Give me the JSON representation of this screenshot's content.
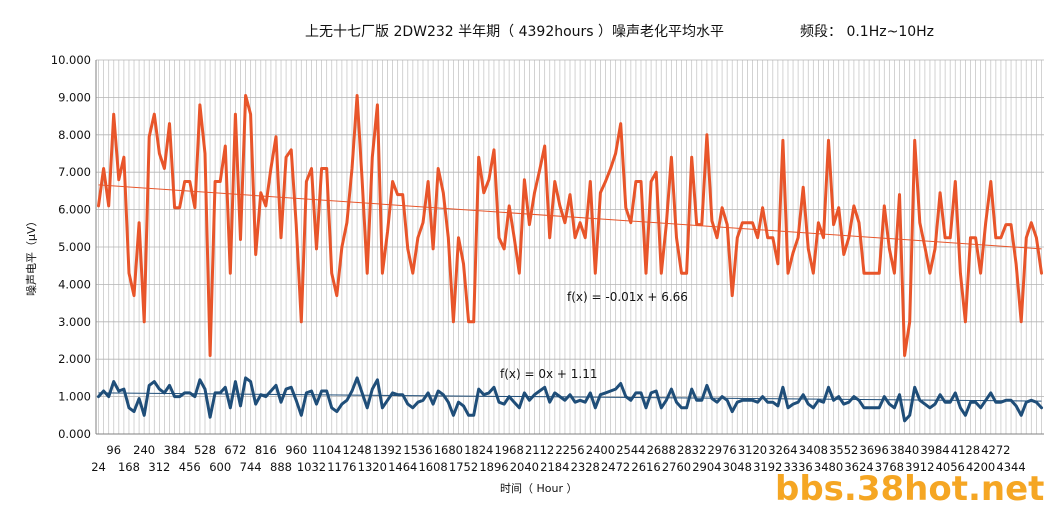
{
  "chart_data": {
    "type": "line",
    "title": "上无十七厂版 2DW232 半年期（ 4392hours ）噪声老化平均水平",
    "subtitle": "频段：  0.1Hz~10Hz",
    "xlabel": "时间（ Hour ）",
    "ylabel": "噪声电平（μV）",
    "ylim": [
      0,
      10
    ],
    "y_ticks": [
      "0.000",
      "1.000",
      "2.000",
      "3.000",
      "4.000",
      "5.000",
      "6.000",
      "7.000",
      "8.000",
      "9.000",
      "10.000"
    ],
    "x_start": 24,
    "x_step": 24,
    "x_tick_labels_lower": [
      "24",
      "168",
      "312",
      "456",
      "600",
      "744",
      "888",
      "1032",
      "1176",
      "1320",
      "1464",
      "1608",
      "1752",
      "1896",
      "2040",
      "2184",
      "2328",
      "2472",
      "2616",
      "2760",
      "2904",
      "3048",
      "3192",
      "3336",
      "3480",
      "3624",
      "3768",
      "3912",
      "4056",
      "4200",
      "4344"
    ],
    "x_tick_labels_upper": [
      "96",
      "240",
      "384",
      "528",
      "672",
      "816",
      "960",
      "1104",
      "1248",
      "1392",
      "1536",
      "1680",
      "1824",
      "1968",
      "2112",
      "2256",
      "2400",
      "2544",
      "2688",
      "2832",
      "2976",
      "3120",
      "3264",
      "3408",
      "3552",
      "3696",
      "3840",
      "3984",
      "4128",
      "4272"
    ],
    "grid": true,
    "legend": "none",
    "series": [
      {
        "name": "",
        "color": "#e8552a",
        "values": [
          6.1,
          7.1,
          6.1,
          8.55,
          6.8,
          7.4,
          4.3,
          3.7,
          5.65,
          3.0,
          7.95,
          8.55,
          7.5,
          7.1,
          8.3,
          6.05,
          6.05,
          6.75,
          6.75,
          6.05,
          8.8,
          7.5,
          2.1,
          6.75,
          6.75,
          7.7,
          4.3,
          8.55,
          5.2,
          9.05,
          8.55,
          4.8,
          6.45,
          6.1,
          7.1,
          7.95,
          5.25,
          7.4,
          7.6,
          5.6,
          3.0,
          6.75,
          7.1,
          4.95,
          7.1,
          7.1,
          4.3,
          3.7,
          5.0,
          5.65,
          7.1,
          9.05,
          6.8,
          4.3,
          7.4,
          8.8,
          4.3,
          5.4,
          6.75,
          6.4,
          6.4,
          4.95,
          4.3,
          5.25,
          5.65,
          6.75,
          4.95,
          7.1,
          6.45,
          5.25,
          3.0,
          5.25,
          4.55,
          3.0,
          3.0,
          7.4,
          6.45,
          6.8,
          7.6,
          5.25,
          4.95,
          6.1,
          5.25,
          4.3,
          6.8,
          5.6,
          6.45,
          7.05,
          7.7,
          5.25,
          6.75,
          6.1,
          5.65,
          6.4,
          5.25,
          5.65,
          5.25,
          6.75,
          4.3,
          6.45,
          6.75,
          7.1,
          7.5,
          8.3,
          6.05,
          5.65,
          6.75,
          6.75,
          4.3,
          6.75,
          7.0,
          4.3,
          5.6,
          7.4,
          5.25,
          4.3,
          4.3,
          7.4,
          5.6,
          5.6,
          8.0,
          5.7,
          5.25,
          6.05,
          5.6,
          3.7,
          5.25,
          5.65,
          5.65,
          5.65,
          5.25,
          6.05,
          5.25,
          5.25,
          4.55,
          7.85,
          4.3,
          4.85,
          5.25,
          6.6,
          4.95,
          4.3,
          5.65,
          5.25,
          7.85,
          5.6,
          6.05,
          4.8,
          5.25,
          6.1,
          5.65,
          4.3,
          4.3,
          4.3,
          4.3,
          6.1,
          4.95,
          4.3,
          6.4,
          2.1,
          3.0,
          7.85,
          5.65,
          5.0,
          4.3,
          4.95,
          6.45,
          5.25,
          5.25,
          6.75,
          4.3,
          3.0,
          5.25,
          5.25,
          4.3,
          5.65,
          6.75,
          5.25,
          5.25,
          5.6,
          5.6,
          4.55,
          3.0,
          5.25,
          5.65,
          5.25,
          4.3
        ]
      },
      {
        "name": "",
        "color": "#1f4e79",
        "values": [
          1.0,
          1.15,
          1.0,
          1.4,
          1.15,
          1.2,
          0.7,
          0.6,
          0.95,
          0.5,
          1.3,
          1.4,
          1.2,
          1.1,
          1.3,
          1.0,
          1.0,
          1.1,
          1.1,
          1.0,
          1.45,
          1.2,
          0.45,
          1.1,
          1.1,
          1.25,
          0.7,
          1.4,
          0.75,
          1.5,
          1.4,
          0.8,
          1.05,
          1.0,
          1.15,
          1.3,
          0.85,
          1.2,
          1.25,
          0.9,
          0.5,
          1.1,
          1.15,
          0.8,
          1.15,
          1.15,
          0.7,
          0.6,
          0.8,
          0.9,
          1.15,
          1.5,
          1.1,
          0.7,
          1.2,
          1.45,
          0.7,
          0.9,
          1.1,
          1.05,
          1.05,
          0.8,
          0.7,
          0.85,
          0.9,
          1.1,
          0.8,
          1.15,
          1.05,
          0.85,
          0.5,
          0.85,
          0.75,
          0.5,
          0.5,
          1.2,
          1.05,
          1.1,
          1.25,
          0.85,
          0.8,
          1.0,
          0.85,
          0.7,
          1.1,
          0.9,
          1.05,
          1.15,
          1.25,
          0.85,
          1.1,
          1.0,
          0.9,
          1.05,
          0.85,
          0.9,
          0.85,
          1.1,
          0.7,
          1.05,
          1.1,
          1.15,
          1.2,
          1.35,
          1.0,
          0.9,
          1.1,
          1.1,
          0.7,
          1.1,
          1.15,
          0.7,
          0.9,
          1.2,
          0.85,
          0.7,
          0.7,
          1.2,
          0.9,
          0.9,
          1.3,
          0.95,
          0.85,
          1.0,
          0.9,
          0.6,
          0.85,
          0.9,
          0.9,
          0.9,
          0.85,
          1.0,
          0.85,
          0.85,
          0.75,
          1.25,
          0.7,
          0.8,
          0.85,
          1.05,
          0.8,
          0.7,
          0.9,
          0.85,
          1.25,
          0.9,
          1.0,
          0.8,
          0.85,
          1.0,
          0.9,
          0.7,
          0.7,
          0.7,
          0.7,
          1.0,
          0.8,
          0.7,
          1.05,
          0.35,
          0.5,
          1.25,
          0.9,
          0.8,
          0.7,
          0.8,
          1.05,
          0.85,
          0.85,
          1.1,
          0.7,
          0.5,
          0.85,
          0.85,
          0.7,
          0.9,
          1.1,
          0.85,
          0.85,
          0.9,
          0.9,
          0.75,
          0.5,
          0.85,
          0.9,
          0.85,
          0.7
        ]
      }
    ],
    "trendlines": [
      {
        "color": "#e8552a",
        "label": "f(x) = -0.01x + 6.66",
        "start": 6.66,
        "end": 4.95
      },
      {
        "color": "#1f4e79",
        "label": "f(x) = 0x + 1.11",
        "start": 1.1,
        "end": 0.88
      }
    ],
    "watermark": "bbs.38hot.net"
  }
}
